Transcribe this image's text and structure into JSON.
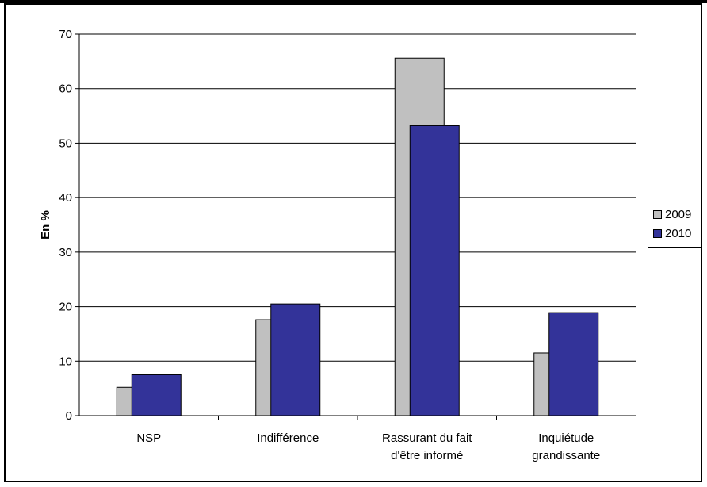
{
  "chart_data": {
    "type": "bar",
    "title": "",
    "xlabel": "",
    "ylabel": "En %",
    "ylim": [
      0,
      70
    ],
    "yticks": [
      0,
      10,
      20,
      30,
      40,
      50,
      60,
      70
    ],
    "grid": true,
    "legend_position": "right",
    "categories": [
      [
        "NSP"
      ],
      [
        "Indifférence"
      ],
      [
        "Rassurant du fait",
        "d'être informé"
      ],
      [
        "Inquiétude",
        "grandissante"
      ]
    ],
    "series": [
      {
        "name": "2009",
        "color": "#C0C0C0",
        "values": [
          5.2,
          17.6,
          65.6,
          11.5
        ]
      },
      {
        "name": "2010",
        "color": "#333399",
        "values": [
          7.5,
          20.5,
          53.2,
          18.9
        ]
      }
    ]
  }
}
